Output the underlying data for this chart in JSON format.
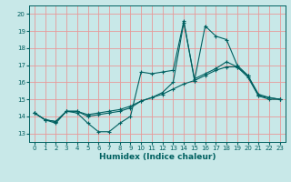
{
  "background_color": "#c8e8e8",
  "grid_color": "#e89898",
  "line_color": "#006060",
  "xlabel": "Humidex (Indice chaleur)",
  "xlim": [
    -0.5,
    23.5
  ],
  "ylim": [
    12.5,
    20.5
  ],
  "xticks": [
    0,
    1,
    2,
    3,
    4,
    5,
    6,
    7,
    8,
    9,
    10,
    11,
    12,
    13,
    14,
    15,
    16,
    17,
    18,
    19,
    20,
    21,
    22,
    23
  ],
  "yticks": [
    13,
    14,
    15,
    16,
    17,
    18,
    19,
    20
  ],
  "series": [
    [
      14.2,
      13.8,
      13.6,
      14.3,
      14.2,
      13.6,
      13.1,
      13.1,
      13.6,
      14.0,
      16.6,
      16.5,
      16.6,
      16.7,
      19.6,
      16.1,
      19.3,
      18.7,
      18.5,
      17.0,
      16.4,
      15.2,
      15.1,
      15.0
    ],
    [
      14.2,
      13.8,
      13.7,
      14.3,
      14.3,
      14.0,
      14.1,
      14.2,
      14.3,
      14.5,
      14.9,
      15.1,
      15.4,
      16.0,
      19.5,
      16.2,
      16.5,
      16.8,
      17.2,
      16.9,
      16.4,
      15.3,
      15.1,
      15.0
    ],
    [
      14.2,
      13.8,
      13.7,
      14.3,
      14.3,
      14.1,
      14.2,
      14.3,
      14.4,
      14.6,
      14.9,
      15.1,
      15.3,
      15.6,
      15.9,
      16.1,
      16.4,
      16.7,
      16.9,
      16.9,
      16.3,
      15.2,
      15.0,
      15.0
    ]
  ],
  "xlabel_fontsize": 6.5,
  "tick_fontsize": 5.0,
  "xlabel_color": "#006060",
  "tick_color": "#006060"
}
